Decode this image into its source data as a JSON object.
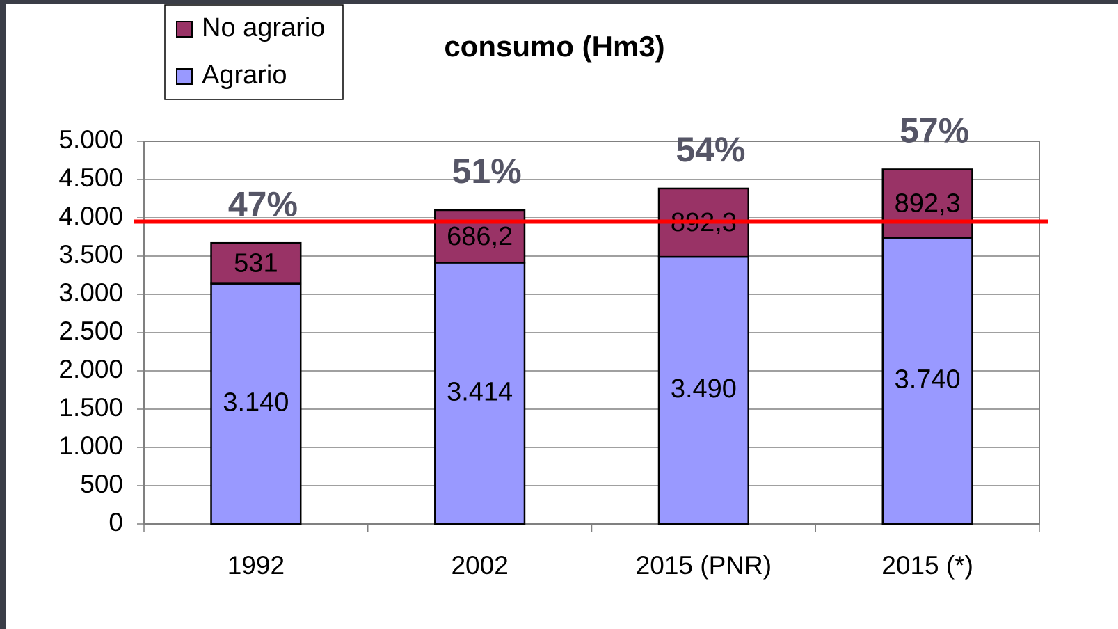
{
  "chart_data": {
    "type": "stacked_bar",
    "title": "consumo (Hm3)",
    "categories": [
      "1992",
      "2002",
      "2015 (PNR)",
      "2015 (*)"
    ],
    "series": [
      {
        "name": "Agrario",
        "color": "#9999ff",
        "values": [
          3140,
          3414,
          3490,
          3740
        ],
        "value_labels": [
          "3.140",
          "3.414",
          "3.490",
          "3.740"
        ]
      },
      {
        "name": "No agrario",
        "color": "#993366",
        "values": [
          531,
          686.2,
          892.3,
          892.3
        ],
        "value_labels": [
          "531",
          "686,2",
          "892,3",
          "892,3"
        ]
      }
    ],
    "annotations": [
      "47%",
      "51%",
      "54%",
      "57%"
    ],
    "reference_line": {
      "value": 3950,
      "color": "#ff0000"
    },
    "ylim": [
      0,
      5000
    ],
    "yticks": [
      0,
      500,
      {
        "value": 1000,
        "label": "1.000"
      },
      {
        "value": 1500,
        "label": "1.500"
      },
      {
        "value": 2000,
        "label": "2.000"
      },
      {
        "value": 2500,
        "label": "2.500"
      },
      {
        "value": 3000,
        "label": "3.000"
      },
      {
        "value": 3500,
        "label": "3.500"
      },
      {
        "value": 4000,
        "label": "4.000"
      },
      {
        "value": 4500,
        "label": "4.500"
      },
      {
        "value": 5000,
        "label": "5.000"
      }
    ],
    "grid": true
  }
}
